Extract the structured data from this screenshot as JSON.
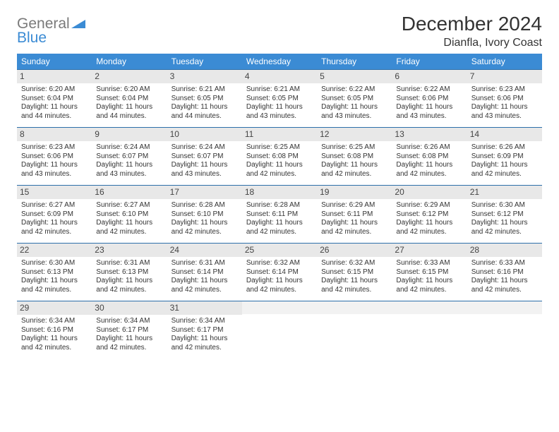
{
  "colors": {
    "header_bg": "#3b8bd4",
    "header_border": "#2d6faa",
    "daynum_bg": "#e8e8e8",
    "daynum_empty_bg": "#f2f2f2",
    "text": "#333333",
    "logo_gray": "#7a7a7a",
    "logo_blue": "#3b8bd4",
    "background": "#ffffff"
  },
  "logo": {
    "text1": "General",
    "text2": "Blue"
  },
  "title": "December 2024",
  "location": "Dianfla, Ivory Coast",
  "weekdays": [
    "Sunday",
    "Monday",
    "Tuesday",
    "Wednesday",
    "Thursday",
    "Friday",
    "Saturday"
  ],
  "calendar": {
    "type": "table",
    "columns": 7,
    "rows": 5,
    "cell_fontsize": 10,
    "header_fontsize": 12
  },
  "days": [
    {
      "n": "1",
      "sunrise": "Sunrise: 6:20 AM",
      "sunset": "Sunset: 6:04 PM",
      "daylight": "Daylight: 11 hours and 44 minutes."
    },
    {
      "n": "2",
      "sunrise": "Sunrise: 6:20 AM",
      "sunset": "Sunset: 6:04 PM",
      "daylight": "Daylight: 11 hours and 44 minutes."
    },
    {
      "n": "3",
      "sunrise": "Sunrise: 6:21 AM",
      "sunset": "Sunset: 6:05 PM",
      "daylight": "Daylight: 11 hours and 44 minutes."
    },
    {
      "n": "4",
      "sunrise": "Sunrise: 6:21 AM",
      "sunset": "Sunset: 6:05 PM",
      "daylight": "Daylight: 11 hours and 43 minutes."
    },
    {
      "n": "5",
      "sunrise": "Sunrise: 6:22 AM",
      "sunset": "Sunset: 6:05 PM",
      "daylight": "Daylight: 11 hours and 43 minutes."
    },
    {
      "n": "6",
      "sunrise": "Sunrise: 6:22 AM",
      "sunset": "Sunset: 6:06 PM",
      "daylight": "Daylight: 11 hours and 43 minutes."
    },
    {
      "n": "7",
      "sunrise": "Sunrise: 6:23 AM",
      "sunset": "Sunset: 6:06 PM",
      "daylight": "Daylight: 11 hours and 43 minutes."
    },
    {
      "n": "8",
      "sunrise": "Sunrise: 6:23 AM",
      "sunset": "Sunset: 6:06 PM",
      "daylight": "Daylight: 11 hours and 43 minutes."
    },
    {
      "n": "9",
      "sunrise": "Sunrise: 6:24 AM",
      "sunset": "Sunset: 6:07 PM",
      "daylight": "Daylight: 11 hours and 43 minutes."
    },
    {
      "n": "10",
      "sunrise": "Sunrise: 6:24 AM",
      "sunset": "Sunset: 6:07 PM",
      "daylight": "Daylight: 11 hours and 43 minutes."
    },
    {
      "n": "11",
      "sunrise": "Sunrise: 6:25 AM",
      "sunset": "Sunset: 6:08 PM",
      "daylight": "Daylight: 11 hours and 42 minutes."
    },
    {
      "n": "12",
      "sunrise": "Sunrise: 6:25 AM",
      "sunset": "Sunset: 6:08 PM",
      "daylight": "Daylight: 11 hours and 42 minutes."
    },
    {
      "n": "13",
      "sunrise": "Sunrise: 6:26 AM",
      "sunset": "Sunset: 6:08 PM",
      "daylight": "Daylight: 11 hours and 42 minutes."
    },
    {
      "n": "14",
      "sunrise": "Sunrise: 6:26 AM",
      "sunset": "Sunset: 6:09 PM",
      "daylight": "Daylight: 11 hours and 42 minutes."
    },
    {
      "n": "15",
      "sunrise": "Sunrise: 6:27 AM",
      "sunset": "Sunset: 6:09 PM",
      "daylight": "Daylight: 11 hours and 42 minutes."
    },
    {
      "n": "16",
      "sunrise": "Sunrise: 6:27 AM",
      "sunset": "Sunset: 6:10 PM",
      "daylight": "Daylight: 11 hours and 42 minutes."
    },
    {
      "n": "17",
      "sunrise": "Sunrise: 6:28 AM",
      "sunset": "Sunset: 6:10 PM",
      "daylight": "Daylight: 11 hours and 42 minutes."
    },
    {
      "n": "18",
      "sunrise": "Sunrise: 6:28 AM",
      "sunset": "Sunset: 6:11 PM",
      "daylight": "Daylight: 11 hours and 42 minutes."
    },
    {
      "n": "19",
      "sunrise": "Sunrise: 6:29 AM",
      "sunset": "Sunset: 6:11 PM",
      "daylight": "Daylight: 11 hours and 42 minutes."
    },
    {
      "n": "20",
      "sunrise": "Sunrise: 6:29 AM",
      "sunset": "Sunset: 6:12 PM",
      "daylight": "Daylight: 11 hours and 42 minutes."
    },
    {
      "n": "21",
      "sunrise": "Sunrise: 6:30 AM",
      "sunset": "Sunset: 6:12 PM",
      "daylight": "Daylight: 11 hours and 42 minutes."
    },
    {
      "n": "22",
      "sunrise": "Sunrise: 6:30 AM",
      "sunset": "Sunset: 6:13 PM",
      "daylight": "Daylight: 11 hours and 42 minutes."
    },
    {
      "n": "23",
      "sunrise": "Sunrise: 6:31 AM",
      "sunset": "Sunset: 6:13 PM",
      "daylight": "Daylight: 11 hours and 42 minutes."
    },
    {
      "n": "24",
      "sunrise": "Sunrise: 6:31 AM",
      "sunset": "Sunset: 6:14 PM",
      "daylight": "Daylight: 11 hours and 42 minutes."
    },
    {
      "n": "25",
      "sunrise": "Sunrise: 6:32 AM",
      "sunset": "Sunset: 6:14 PM",
      "daylight": "Daylight: 11 hours and 42 minutes."
    },
    {
      "n": "26",
      "sunrise": "Sunrise: 6:32 AM",
      "sunset": "Sunset: 6:15 PM",
      "daylight": "Daylight: 11 hours and 42 minutes."
    },
    {
      "n": "27",
      "sunrise": "Sunrise: 6:33 AM",
      "sunset": "Sunset: 6:15 PM",
      "daylight": "Daylight: 11 hours and 42 minutes."
    },
    {
      "n": "28",
      "sunrise": "Sunrise: 6:33 AM",
      "sunset": "Sunset: 6:16 PM",
      "daylight": "Daylight: 11 hours and 42 minutes."
    },
    {
      "n": "29",
      "sunrise": "Sunrise: 6:34 AM",
      "sunset": "Sunset: 6:16 PM",
      "daylight": "Daylight: 11 hours and 42 minutes."
    },
    {
      "n": "30",
      "sunrise": "Sunrise: 6:34 AM",
      "sunset": "Sunset: 6:17 PM",
      "daylight": "Daylight: 11 hours and 42 minutes."
    },
    {
      "n": "31",
      "sunrise": "Sunrise: 6:34 AM",
      "sunset": "Sunset: 6:17 PM",
      "daylight": "Daylight: 11 hours and 42 minutes."
    }
  ]
}
